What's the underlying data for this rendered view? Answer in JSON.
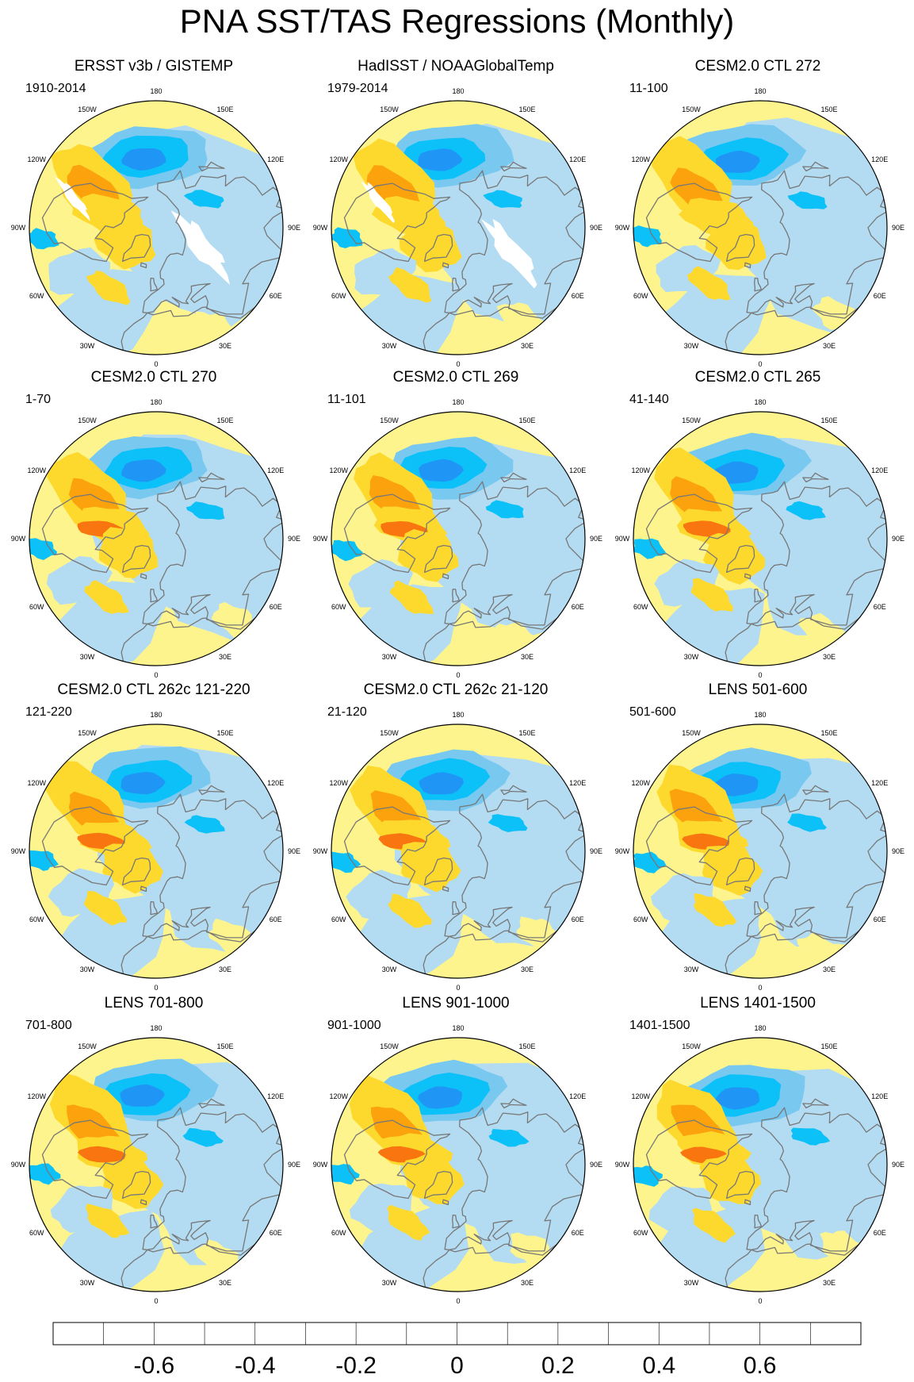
{
  "title": "PNA SST/TAS Regressions (Monthly)",
  "longitude_labels": [
    {
      "text": "180",
      "lon": 180
    },
    {
      "text": "150E",
      "lon": 150
    },
    {
      "text": "120E",
      "lon": 120
    },
    {
      "text": "90E",
      "lon": 90
    },
    {
      "text": "60E",
      "lon": 60
    },
    {
      "text": "30E",
      "lon": 30
    },
    {
      "text": "0",
      "lon": 0
    },
    {
      "text": "30W",
      "lon": -30
    },
    {
      "text": "60W",
      "lon": -60
    },
    {
      "text": "90W",
      "lon": -90
    },
    {
      "text": "120W",
      "lon": -120
    },
    {
      "text": "150W",
      "lon": -150
    }
  ],
  "colors": {
    "background_positive": "#fdf48d",
    "background_negative": "#b3dcf2",
    "coast": "#777777",
    "missing": "#ffffff"
  },
  "panels": [
    {
      "title": "ERSST v3b / GISTEMP",
      "period": "1910-2014",
      "missing_data": true
    },
    {
      "title": "HadISST / NOAAGlobalTemp",
      "period": "1979-2014",
      "missing_data": true
    },
    {
      "title": "CESM2.0 CTL 272",
      "period": "11-100",
      "missing_data": false
    },
    {
      "title": "CESM2.0 CTL 270",
      "period": "1-70",
      "missing_data": false
    },
    {
      "title": "CESM2.0 CTL 269",
      "period": "11-101",
      "missing_data": false
    },
    {
      "title": "CESM2.0 CTL 265",
      "period": "41-140",
      "missing_data": false
    },
    {
      "title": "CESM2.0 CTL 262c 121-220",
      "period": "121-220",
      "missing_data": false
    },
    {
      "title": "CESM2.0 CTL 262c 21-120",
      "period": "21-120",
      "missing_data": false
    },
    {
      "title": "LENS 501-600",
      "period": "501-600",
      "missing_data": false
    },
    {
      "title": "LENS 701-800",
      "period": "701-800",
      "missing_data": false
    },
    {
      "title": "LENS 901-1000",
      "period": "901-1000",
      "missing_data": false
    },
    {
      "title": "LENS 1401-1500",
      "period": "1401-1500",
      "missing_data": false
    }
  ],
  "colorbar": {
    "colors": [
      "#8a1ff0",
      "#1010f5",
      "#2b4be8",
      "#3478ee",
      "#1f96f5",
      "#0cc0f8",
      "#79c8f0",
      "#b3dcf2",
      "#fdf48d",
      "#fdd92e",
      "#fba20d",
      "#f87510",
      "#f93b0c",
      "#e80b0b",
      "#c61a1a",
      "#fbb4b4"
    ],
    "boundaries": [
      -0.7,
      -0.6,
      -0.5,
      -0.4,
      -0.3,
      -0.2,
      -0.1,
      0,
      0.1,
      0.2,
      0.3,
      0.4,
      0.5,
      0.6,
      0.7
    ],
    "tick_labels": [
      {
        "text": "-0.6",
        "value": -0.6
      },
      {
        "text": "-0.4",
        "value": -0.4
      },
      {
        "text": "-0.2",
        "value": -0.2
      },
      {
        "text": "0",
        "value": 0
      },
      {
        "text": "0.2",
        "value": 0.2
      },
      {
        "text": "0.4",
        "value": 0.4
      },
      {
        "text": "0.6",
        "value": 0.6
      }
    ]
  }
}
